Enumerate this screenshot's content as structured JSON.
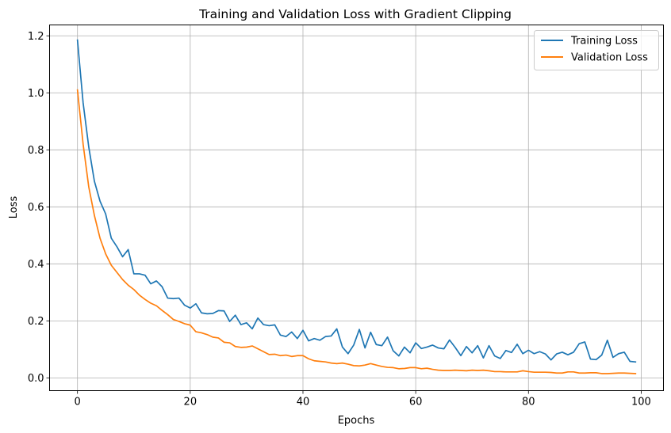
{
  "chart_data": {
    "type": "line",
    "title": "Training and Validation Loss with Gradient Clipping",
    "xlabel": "Epochs",
    "ylabel": "Loss",
    "xlim": [
      -4.95,
      103.95
    ],
    "ylim": [
      -0.0448,
      1.2382
    ],
    "xticks": [
      0,
      20,
      40,
      60,
      80,
      100
    ],
    "xtick_labels": [
      "0",
      "20",
      "40",
      "60",
      "80",
      "100"
    ],
    "yticks": [
      0.0,
      0.2,
      0.4,
      0.6,
      0.8,
      1.0,
      1.2
    ],
    "ytick_labels": [
      "0.0",
      "0.2",
      "0.4",
      "0.6",
      "0.8",
      "1.0",
      "1.2"
    ],
    "grid": true,
    "legend_position": "top-right",
    "x": [
      0,
      1,
      2,
      3,
      4,
      5,
      6,
      7,
      8,
      9,
      10,
      11,
      12,
      13,
      14,
      15,
      16,
      17,
      18,
      19,
      20,
      21,
      22,
      23,
      24,
      25,
      26,
      27,
      28,
      29,
      30,
      31,
      32,
      33,
      34,
      35,
      36,
      37,
      38,
      39,
      40,
      41,
      42,
      43,
      44,
      45,
      46,
      47,
      48,
      49,
      50,
      51,
      52,
      53,
      54,
      55,
      56,
      57,
      58,
      59,
      60,
      61,
      62,
      63,
      64,
      65,
      66,
      67,
      68,
      69,
      70,
      71,
      72,
      73,
      74,
      75,
      76,
      77,
      78,
      79,
      80,
      81,
      82,
      83,
      84,
      85,
      86,
      87,
      88,
      89,
      90,
      91,
      92,
      93,
      94,
      95,
      96,
      97,
      98,
      99
    ],
    "series": [
      {
        "name": "Training Loss",
        "color": "#1f77b4",
        "values": [
          1.185,
          0.965,
          0.81,
          0.69,
          0.62,
          0.575,
          0.49,
          0.46,
          0.425,
          0.45,
          0.365,
          0.365,
          0.36,
          0.33,
          0.34,
          0.32,
          0.28,
          0.278,
          0.28,
          0.255,
          0.245,
          0.26,
          0.228,
          0.225,
          0.226,
          0.236,
          0.235,
          0.198,
          0.22,
          0.187,
          0.193,
          0.172,
          0.21,
          0.187,
          0.183,
          0.186,
          0.15,
          0.145,
          0.161,
          0.138,
          0.167,
          0.13,
          0.138,
          0.132,
          0.145,
          0.147,
          0.172,
          0.108,
          0.085,
          0.115,
          0.17,
          0.105,
          0.16,
          0.117,
          0.113,
          0.143,
          0.095,
          0.077,
          0.108,
          0.088,
          0.123,
          0.103,
          0.108,
          0.115,
          0.105,
          0.102,
          0.133,
          0.107,
          0.078,
          0.11,
          0.088,
          0.113,
          0.07,
          0.113,
          0.077,
          0.068,
          0.096,
          0.089,
          0.118,
          0.085,
          0.097,
          0.085,
          0.092,
          0.084,
          0.063,
          0.084,
          0.09,
          0.081,
          0.09,
          0.12,
          0.126,
          0.066,
          0.064,
          0.08,
          0.132,
          0.072,
          0.085,
          0.09,
          0.058,
          0.056
        ]
      },
      {
        "name": "Validation Loss",
        "color": "#ff7f0e",
        "values": [
          1.01,
          0.82,
          0.67,
          0.57,
          0.49,
          0.435,
          0.395,
          0.37,
          0.345,
          0.325,
          0.31,
          0.29,
          0.275,
          0.262,
          0.253,
          0.237,
          0.222,
          0.205,
          0.198,
          0.19,
          0.185,
          0.162,
          0.158,
          0.152,
          0.143,
          0.14,
          0.125,
          0.123,
          0.11,
          0.107,
          0.108,
          0.112,
          0.102,
          0.092,
          0.082,
          0.083,
          0.078,
          0.08,
          0.075,
          0.078,
          0.078,
          0.067,
          0.06,
          0.058,
          0.056,
          0.052,
          0.05,
          0.052,
          0.048,
          0.043,
          0.042,
          0.045,
          0.05,
          0.045,
          0.04,
          0.037,
          0.036,
          0.032,
          0.033,
          0.036,
          0.036,
          0.032,
          0.034,
          0.03,
          0.027,
          0.026,
          0.026,
          0.027,
          0.026,
          0.025,
          0.027,
          0.026,
          0.027,
          0.025,
          0.022,
          0.022,
          0.021,
          0.021,
          0.021,
          0.025,
          0.022,
          0.02,
          0.02,
          0.02,
          0.019,
          0.017,
          0.017,
          0.021,
          0.021,
          0.017,
          0.017,
          0.018,
          0.018,
          0.015,
          0.015,
          0.016,
          0.017,
          0.017,
          0.016,
          0.015
        ]
      }
    ]
  }
}
